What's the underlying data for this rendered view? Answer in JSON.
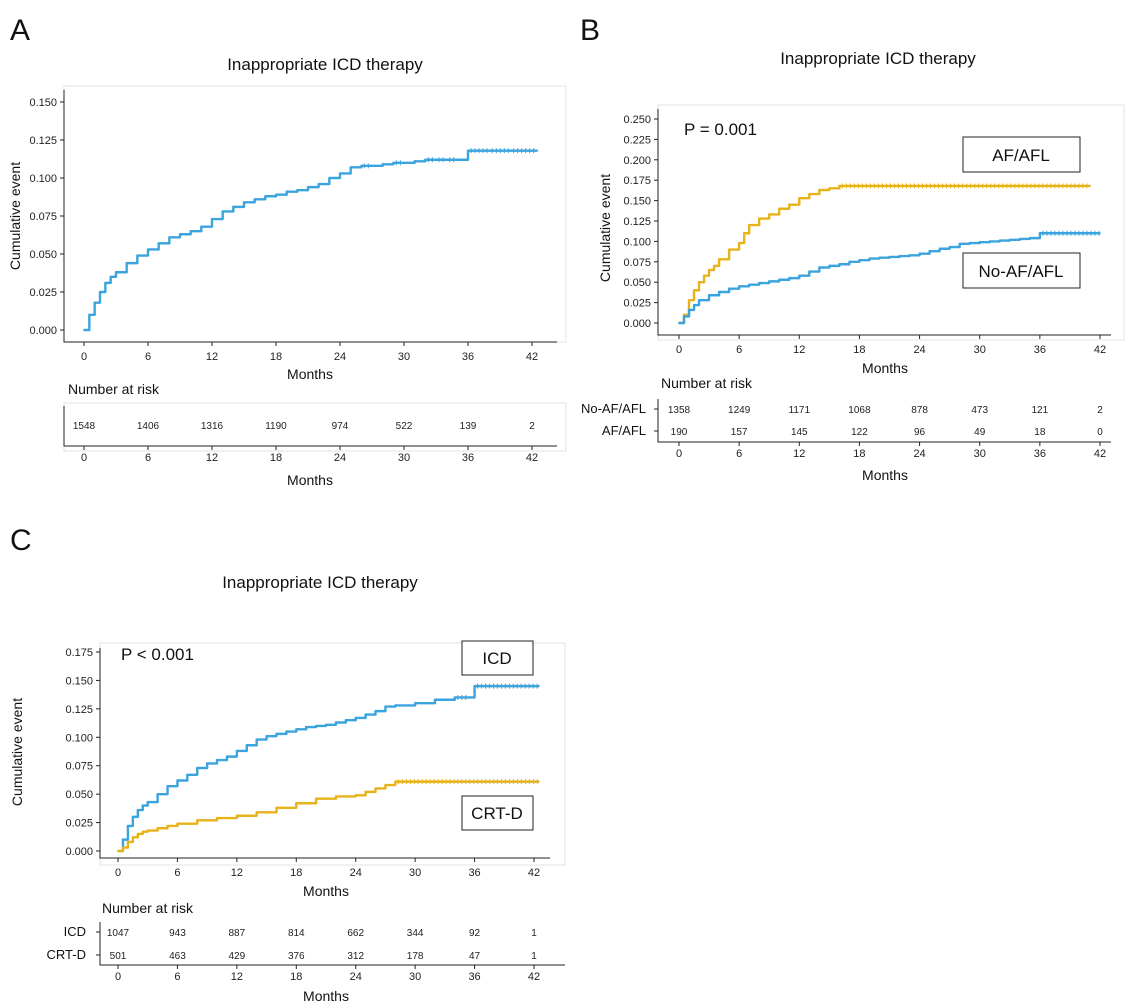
{
  "chart_data": [
    {
      "panel": "A",
      "type": "line",
      "title": "Inappropriate ICD therapy",
      "xlabel": "Months",
      "ylabel": "Cumulative event",
      "xlim": [
        0,
        42
      ],
      "ylim": [
        0,
        0.15
      ],
      "xticks": [
        0,
        6,
        12,
        18,
        24,
        30,
        36,
        42
      ],
      "xtick_labels": [
        "0",
        "6",
        "12",
        "18",
        "24",
        "30",
        "36",
        "42"
      ],
      "yticks": [
        0,
        0.025,
        0.05,
        0.075,
        0.1,
        0.125,
        0.15
      ],
      "ytick_labels": [
        "0.000",
        "0.025",
        "0.050",
        "0.075",
        "0.100",
        "0.125",
        "0.150"
      ],
      "colors": [
        "#3ba3dd"
      ],
      "series": [
        {
          "color": "#3ba3dd",
          "x": [
            0,
            0.5,
            1,
            1.5,
            2,
            2.5,
            3,
            4,
            5,
            6,
            7,
            8,
            9,
            10,
            11,
            12,
            13,
            14,
            15,
            16,
            17,
            18,
            19,
            20,
            21,
            22,
            23,
            24,
            25,
            26,
            27,
            28,
            29,
            30,
            31,
            32,
            33,
            34,
            35,
            36,
            38,
            40,
            42.5
          ],
          "y": [
            0,
            0.01,
            0.018,
            0.025,
            0.031,
            0.035,
            0.038,
            0.044,
            0.049,
            0.053,
            0.057,
            0.061,
            0.063,
            0.065,
            0.068,
            0.073,
            0.078,
            0.081,
            0.084,
            0.086,
            0.088,
            0.089,
            0.091,
            0.092,
            0.094,
            0.096,
            0.1,
            0.103,
            0.107,
            0.108,
            0.108,
            0.109,
            0.11,
            0.11,
            0.111,
            0.112,
            0.112,
            0.112,
            0.112,
            0.118,
            0.118,
            0.118,
            0.118
          ]
        }
      ],
      "risk_table": {
        "title": "Number at risk",
        "xlabel": "Months",
        "rows": [
          {
            "label": "",
            "values": [
              "1548",
              "1406",
              "1316",
              "1190",
              "974",
              "522",
              "139",
              "2"
            ]
          }
        ]
      }
    },
    {
      "panel": "B",
      "type": "line",
      "title": "Inappropriate ICD therapy",
      "xlabel": "Months",
      "ylabel": "Cumulative event",
      "annotation": "P = 0.001",
      "xlim": [
        0,
        42
      ],
      "ylim": [
        0,
        0.25
      ],
      "xticks": [
        0,
        6,
        12,
        18,
        24,
        30,
        36,
        42
      ],
      "xtick_labels": [
        "0",
        "6",
        "12",
        "18",
        "24",
        "30",
        "36",
        "42"
      ],
      "yticks": [
        0,
        0.025,
        0.05,
        0.075,
        0.1,
        0.125,
        0.15,
        0.175,
        0.2,
        0.225,
        0.25
      ],
      "ytick_labels": [
        "0.000",
        "0.025",
        "0.050",
        "0.075",
        "0.100",
        "0.125",
        "0.150",
        "0.175",
        "0.200",
        "0.225",
        "0.250"
      ],
      "colors": [
        "#e8b21a",
        "#3ba3dd"
      ],
      "series": [
        {
          "name": "AF/AFL",
          "color": "#e8b21a",
          "x": [
            0,
            0.5,
            1,
            1.5,
            2,
            2.5,
            3,
            3.5,
            4,
            5,
            6,
            6.5,
            7,
            8,
            9,
            10,
            11,
            12,
            13,
            14,
            15,
            16,
            20,
            24,
            28,
            32,
            36,
            41
          ],
          "y": [
            0,
            0.01,
            0.028,
            0.04,
            0.05,
            0.058,
            0.065,
            0.07,
            0.078,
            0.09,
            0.098,
            0.11,
            0.12,
            0.128,
            0.133,
            0.14,
            0.145,
            0.153,
            0.158,
            0.163,
            0.165,
            0.168,
            0.168,
            0.168,
            0.168,
            0.168,
            0.168,
            0.168
          ]
        },
        {
          "name": "No-AF/AFL",
          "color": "#3ba3dd",
          "x": [
            0,
            0.5,
            1,
            1.5,
            2,
            3,
            4,
            5,
            6,
            7,
            8,
            9,
            10,
            11,
            12,
            13,
            14,
            15,
            16,
            17,
            18,
            19,
            20,
            21,
            22,
            23,
            24,
            25,
            26,
            27,
            28,
            29,
            30,
            31,
            32,
            33,
            34,
            35,
            36,
            38,
            40,
            42
          ],
          "y": [
            0,
            0.008,
            0.016,
            0.022,
            0.028,
            0.034,
            0.038,
            0.042,
            0.045,
            0.047,
            0.049,
            0.051,
            0.053,
            0.055,
            0.058,
            0.063,
            0.068,
            0.07,
            0.072,
            0.075,
            0.077,
            0.079,
            0.08,
            0.081,
            0.082,
            0.083,
            0.085,
            0.088,
            0.091,
            0.093,
            0.097,
            0.098,
            0.099,
            0.1,
            0.101,
            0.102,
            0.103,
            0.104,
            0.11,
            0.11,
            0.11,
            0.11
          ]
        }
      ],
      "legend_boxes": [
        "AF/AFL",
        "No-AF/AFL"
      ],
      "risk_table": {
        "title": "Number at risk",
        "xlabel": "Months",
        "rows": [
          {
            "label": "No-AF/AFL",
            "values": [
              "1358",
              "1249",
              "1171",
              "1068",
              "878",
              "473",
              "121",
              "2"
            ]
          },
          {
            "label": "AF/AFL",
            "values": [
              "190",
              "157",
              "145",
              "122",
              "96",
              "49",
              "18",
              "0"
            ]
          }
        ]
      }
    },
    {
      "panel": "C",
      "type": "line",
      "title": "Inappropriate ICD therapy",
      "xlabel": "Months",
      "ylabel": "Cumulative event",
      "annotation": "P < 0.001",
      "xlim": [
        0,
        42
      ],
      "ylim": [
        0,
        0.175
      ],
      "xticks": [
        0,
        6,
        12,
        18,
        24,
        30,
        36,
        42
      ],
      "xtick_labels": [
        "0",
        "6",
        "12",
        "18",
        "24",
        "30",
        "36",
        "42"
      ],
      "yticks": [
        0,
        0.025,
        0.05,
        0.075,
        0.1,
        0.125,
        0.15,
        0.175
      ],
      "ytick_labels": [
        "0.000",
        "0.025",
        "0.050",
        "0.075",
        "0.100",
        "0.125",
        "0.150",
        "0.175"
      ],
      "colors": [
        "#3ba3dd",
        "#e8b21a"
      ],
      "series": [
        {
          "name": "ICD",
          "color": "#3ba3dd",
          "x": [
            0,
            0.5,
            1,
            1.5,
            2,
            2.5,
            3,
            4,
            5,
            6,
            7,
            8,
            9,
            10,
            11,
            12,
            13,
            14,
            15,
            16,
            17,
            18,
            19,
            20,
            21,
            22,
            23,
            24,
            25,
            26,
            27,
            28,
            30,
            32,
            34,
            35.5,
            36,
            38,
            40,
            42.5
          ],
          "y": [
            0,
            0.01,
            0.022,
            0.03,
            0.036,
            0.04,
            0.043,
            0.05,
            0.057,
            0.062,
            0.067,
            0.073,
            0.077,
            0.08,
            0.083,
            0.088,
            0.093,
            0.098,
            0.101,
            0.103,
            0.105,
            0.107,
            0.109,
            0.11,
            0.111,
            0.113,
            0.115,
            0.117,
            0.12,
            0.123,
            0.127,
            0.128,
            0.13,
            0.133,
            0.135,
            0.135,
            0.145,
            0.145,
            0.145,
            0.145
          ]
        },
        {
          "name": "CRT-D",
          "color": "#e8b21a",
          "x": [
            0,
            0.5,
            1,
            1.5,
            2,
            2.5,
            3,
            4,
            5,
            6,
            8,
            10,
            12,
            14,
            16,
            18,
            20,
            22,
            24,
            25,
            26,
            27,
            28,
            30,
            34,
            38,
            42.5
          ],
          "y": [
            0,
            0.003,
            0.008,
            0.012,
            0.015,
            0.017,
            0.018,
            0.02,
            0.022,
            0.024,
            0.027,
            0.029,
            0.031,
            0.034,
            0.038,
            0.042,
            0.046,
            0.048,
            0.049,
            0.052,
            0.055,
            0.058,
            0.061,
            0.061,
            0.061,
            0.061,
            0.061
          ]
        }
      ],
      "legend_boxes": [
        "ICD",
        "CRT-D"
      ],
      "risk_table": {
        "title": "Number at risk",
        "xlabel": "Months",
        "rows": [
          {
            "label": "ICD",
            "values": [
              "1047",
              "943",
              "887",
              "814",
              "662",
              "344",
              "92",
              "1"
            ]
          },
          {
            "label": "CRT-D",
            "values": [
              "501",
              "463",
              "429",
              "376",
              "312",
              "178",
              "47",
              "1"
            ]
          }
        ]
      }
    }
  ]
}
